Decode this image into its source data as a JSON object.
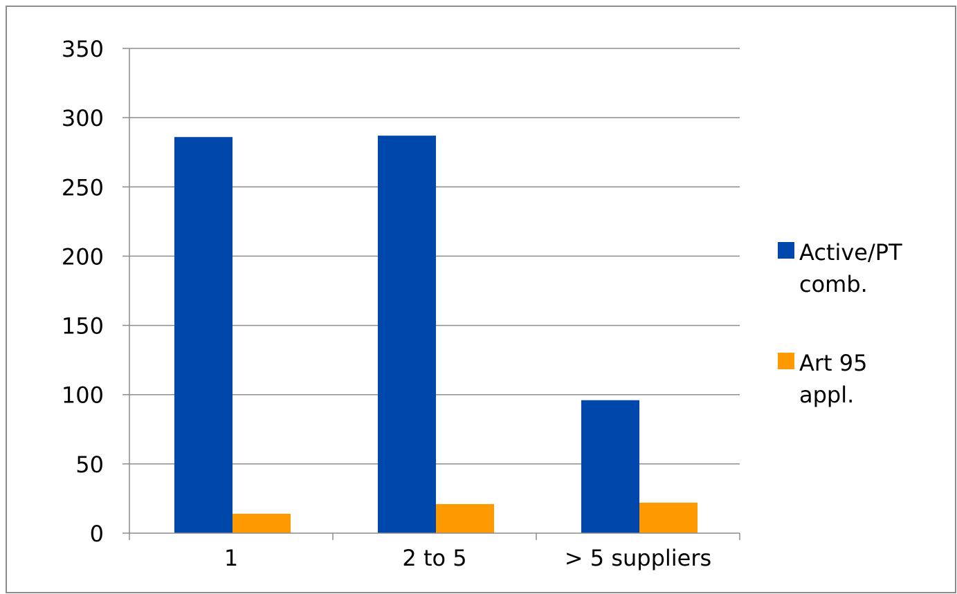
{
  "chart_data": {
    "type": "bar",
    "categories": [
      "1",
      "2 to 5",
      "> 5 suppliers"
    ],
    "series": [
      {
        "name": "Active/PT comb.",
        "color": "#0047ab",
        "values": [
          286,
          287,
          96
        ]
      },
      {
        "name": "Art 95 appl.",
        "color": "#ff9900",
        "values": [
          14,
          21,
          22
        ]
      }
    ],
    "yticks": [
      "0",
      "50",
      "100",
      "150",
      "200",
      "250",
      "300",
      "350"
    ],
    "ylim": [
      0,
      350
    ],
    "grid": true,
    "legend_position": "right"
  },
  "legend": {
    "items": [
      {
        "lines": [
          "Active/PT",
          "comb."
        ],
        "color": "#0047ab"
      },
      {
        "lines": [
          "Art 95",
          "appl."
        ],
        "color": "#ff9900"
      }
    ]
  }
}
